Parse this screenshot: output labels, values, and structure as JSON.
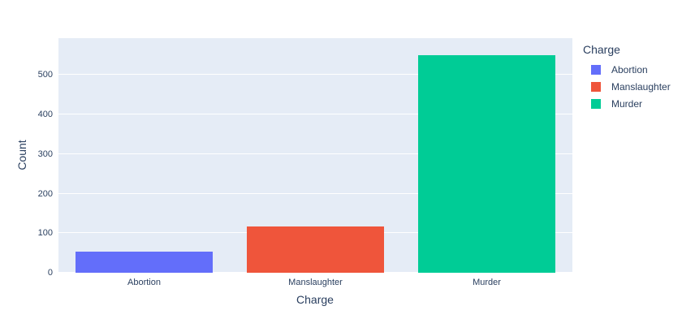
{
  "figure": {
    "plot_bg": "#e5ecf6",
    "grid_color": "#ffffff",
    "font_color": "#2a3f5f"
  },
  "chart_data": {
    "type": "bar",
    "title": "",
    "xlabel": "Charge",
    "ylabel": "Count",
    "categories": [
      "Abortion",
      "Manslaughter",
      "Murder"
    ],
    "values": [
      53,
      117,
      549
    ],
    "colors": [
      "#636efa",
      "#ef553b",
      "#00cc96"
    ],
    "ylim": [
      0,
      593
    ],
    "yticks": [
      0,
      100,
      200,
      300,
      400,
      500
    ],
    "grid": true,
    "legend_position": "right"
  },
  "legend": {
    "title": "Charge",
    "items": [
      {
        "label": "Abortion",
        "color": "#636efa"
      },
      {
        "label": "Manslaughter",
        "color": "#ef553b"
      },
      {
        "label": "Murder",
        "color": "#00cc96"
      }
    ]
  }
}
